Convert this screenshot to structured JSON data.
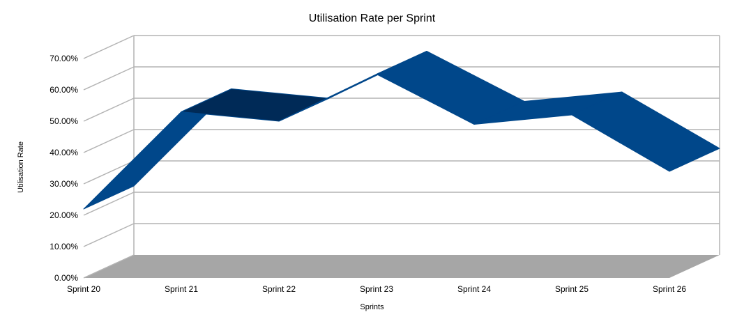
{
  "chart_data": {
    "type": "area",
    "title": "Utilisation Rate per Sprint",
    "xlabel": "Sprints",
    "ylabel": "Utilisation Rate",
    "categories": [
      "Sprint 20",
      "Sprint 21",
      "Sprint 22",
      "Sprint 23",
      "Sprint 24",
      "Sprint 25",
      "Sprint 26"
    ],
    "series": [
      {
        "values": [
          0.22,
          0.53,
          0.5,
          0.65,
          0.49,
          0.52,
          0.34
        ]
      }
    ],
    "y_ticks": [
      "0.00%",
      "10.00%",
      "20.00%",
      "30.00%",
      "40.00%",
      "50.00%",
      "60.00%",
      "70.00%"
    ],
    "ylim": [
      0,
      0.7
    ],
    "grid": true,
    "three_d": true,
    "colors": {
      "ribbon_front": "#00478a",
      "ribbon_dark": "#002a57",
      "floor": "#a6a6a6",
      "grid": "#b3b3b3"
    }
  }
}
